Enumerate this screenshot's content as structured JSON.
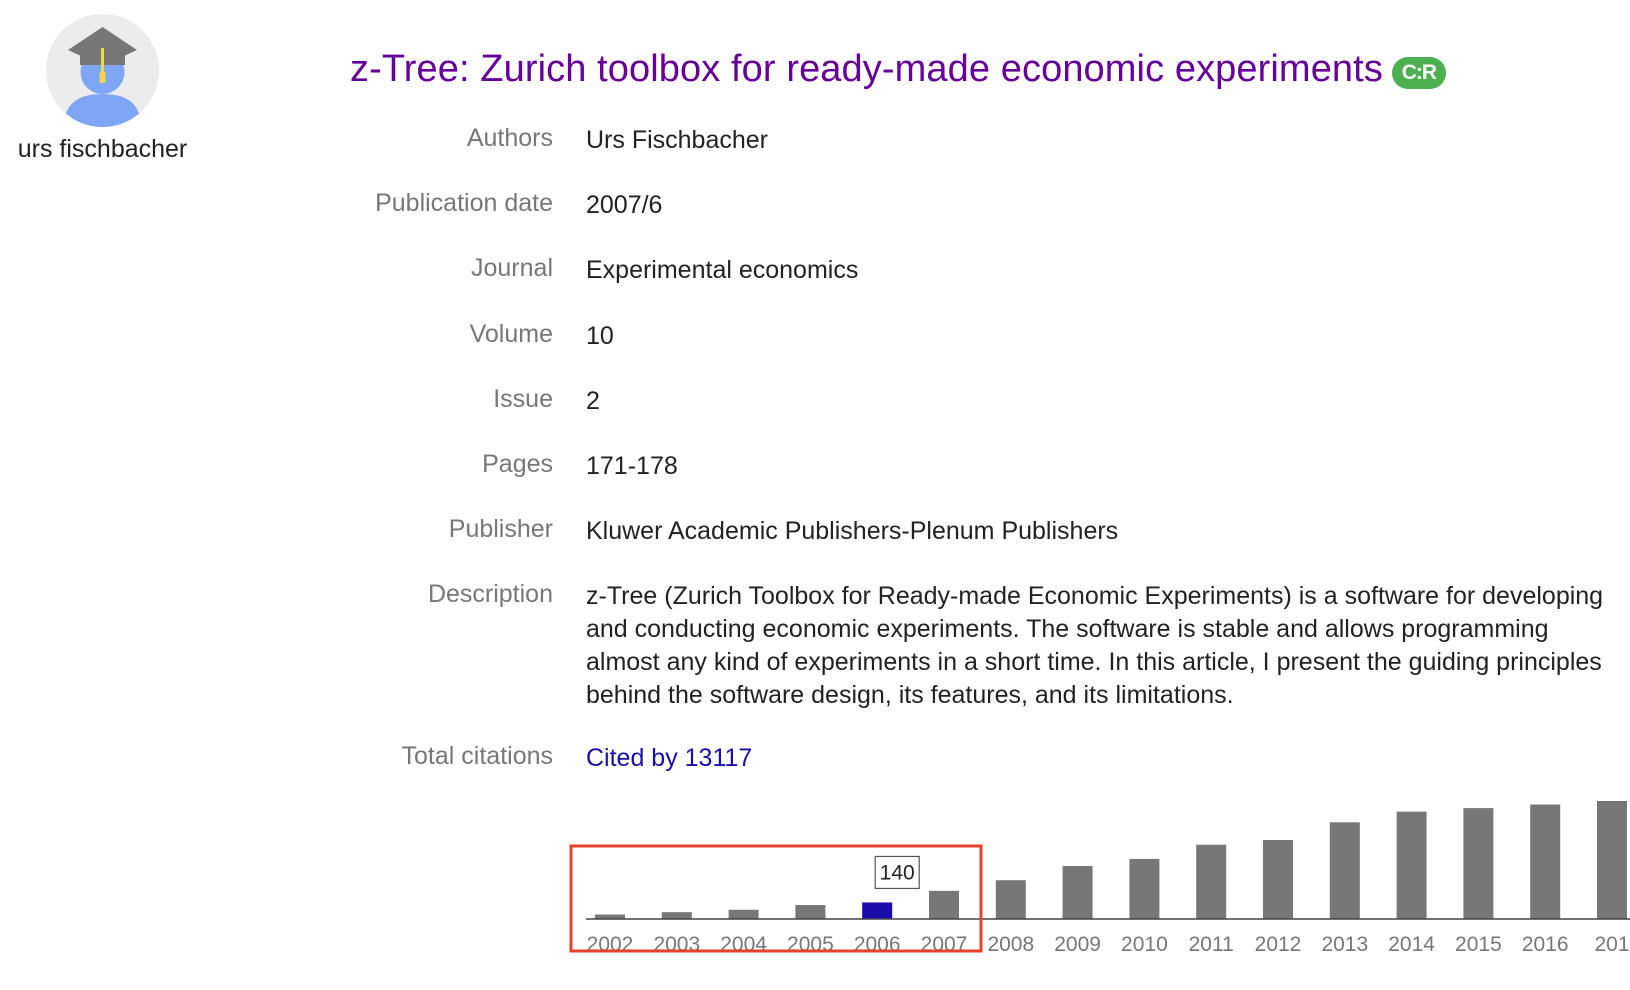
{
  "profile": {
    "name": "urs fischbacher",
    "avatar_icon": "graduate-avatar-icon"
  },
  "article": {
    "title": "z-Tree: Zurich toolbox for ready-made economic experiments",
    "badge": "C:R"
  },
  "fields": [
    {
      "label": "Authors",
      "value": "Urs Fischbacher"
    },
    {
      "label": "Publication date",
      "value": "2007/6"
    },
    {
      "label": "Journal",
      "value": "Experimental economics"
    },
    {
      "label": "Volume",
      "value": "10"
    },
    {
      "label": "Issue",
      "value": "2"
    },
    {
      "label": "Pages",
      "value": "171-178"
    },
    {
      "label": "Publisher",
      "value": "Kluwer Academic Publishers-Plenum Publishers"
    },
    {
      "label": "Description",
      "value": "z-Tree (Zurich Toolbox for Ready-made Economic Experiments) is a software for developing and conducting economic experiments. The software is stable and allows programming almost any kind of experiments in a short time. In this article, I present the guiding principles behind the software design, its features, and its limitations."
    },
    {
      "label": "Total citations",
      "value": "Cited by 13117"
    }
  ],
  "colors": {
    "title": "#660099",
    "link": "#1a0dab",
    "bar": "#777777",
    "bar_highlight": "#1a0dab",
    "highlight_box": "#e8412c",
    "badge": "#4caf50"
  },
  "chart_data": {
    "type": "bar",
    "categories": [
      "2002",
      "2003",
      "2004",
      "2005",
      "2006",
      "2007",
      "2008",
      "2009",
      "2010",
      "2011",
      "2012",
      "2013",
      "2014",
      "2015",
      "2016",
      "201"
    ],
    "values": [
      38,
      58,
      78,
      118,
      140,
      238,
      328,
      448,
      508,
      628,
      668,
      818,
      908,
      938,
      968,
      998
    ],
    "highlighted_category": "2006",
    "tooltip": "140",
    "grid": false
  }
}
